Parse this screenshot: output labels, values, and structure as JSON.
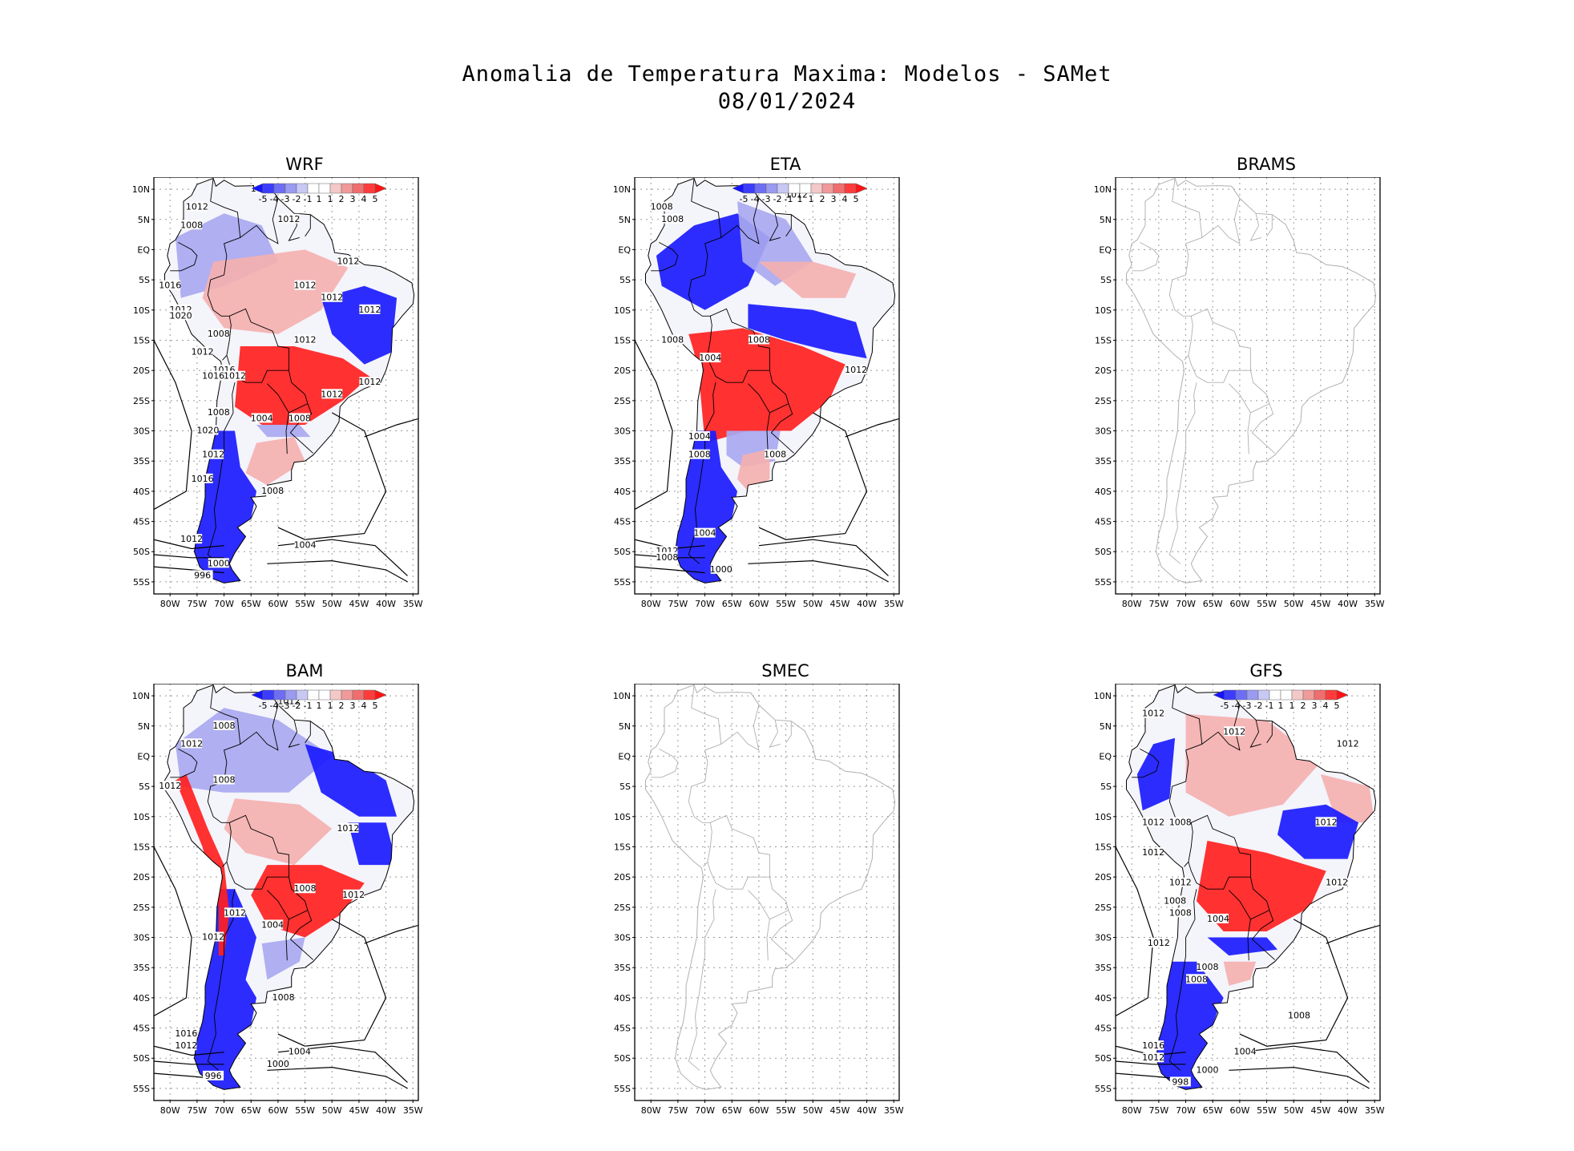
{
  "header": {
    "title_line1": "Anomalia de Temperatura Maxima: Modelos - SAMet",
    "title_line2": "08/01/2024"
  },
  "axes": {
    "lat_labels": [
      "10N",
      "5N",
      "EQ",
      "5S",
      "10S",
      "15S",
      "20S",
      "25S",
      "30S",
      "35S",
      "40S",
      "45S",
      "50S",
      "55S"
    ],
    "lon_labels": [
      "80W",
      "75W",
      "70W",
      "65W",
      "60W",
      "55W",
      "50W",
      "45W",
      "40W",
      "35W"
    ]
  },
  "colorbar": {
    "labels": [
      "-5",
      "-4",
      "-3",
      "-2",
      "-1",
      "1",
      "1",
      "2",
      "3",
      "4",
      "5"
    ],
    "colors": [
      "#1414ff",
      "#3c3cff",
      "#6e6ef5",
      "#9a9af0",
      "#c8c8f5",
      "#ffffff",
      "#ffffff",
      "#f5c8c8",
      "#f09a9a",
      "#f06e6e",
      "#ff3c3c",
      "#ff1414"
    ]
  },
  "colors": {
    "warm": "#ff2020",
    "warm_light": "#f4b0b0",
    "cold": "#1a1aff",
    "cold_light": "#a8a8f0",
    "coast_gray": "#b0b0b0",
    "frame": "#000000"
  },
  "panels": [
    {
      "name": "WRF",
      "has_data": true,
      "contours": [
        {
          "text": "1012",
          "lon": -63,
          "lat": 10
        },
        {
          "text": "1012",
          "lon": -75,
          "lat": 7
        },
        {
          "text": "1008",
          "lon": -76,
          "lat": 4
        },
        {
          "text": "1012",
          "lon": -58,
          "lat": 5
        },
        {
          "text": "1012",
          "lon": -47,
          "lat": -2
        },
        {
          "text": "1016",
          "lon": -80,
          "lat": -6
        },
        {
          "text": "1012",
          "lon": -55,
          "lat": -6
        },
        {
          "text": "1012",
          "lon": -50,
          "lat": -8
        },
        {
          "text": "1012",
          "lon": -43,
          "lat": -10
        },
        {
          "text": "1012",
          "lon": -78,
          "lat": -10
        },
        {
          "text": "1020",
          "lon": -78,
          "lat": -11
        },
        {
          "text": "1008",
          "lon": -71,
          "lat": -14
        },
        {
          "text": "1012",
          "lon": -55,
          "lat": -15
        },
        {
          "text": "1012",
          "lon": -74,
          "lat": -17
        },
        {
          "text": "1016",
          "lon": -70,
          "lat": -20
        },
        {
          "text": "1016",
          "lon": -72,
          "lat": -21
        },
        {
          "text": "1012",
          "lon": -68,
          "lat": -21
        },
        {
          "text": "1012",
          "lon": -43,
          "lat": -22
        },
        {
          "text": "1012",
          "lon": -50,
          "lat": -24
        },
        {
          "text": "1008",
          "lon": -71,
          "lat": -27
        },
        {
          "text": "1004",
          "lon": -63,
          "lat": -28
        },
        {
          "text": "1008",
          "lon": -56,
          "lat": -28
        },
        {
          "text": "1020",
          "lon": -73,
          "lat": -30
        },
        {
          "text": "1012",
          "lon": -72,
          "lat": -34
        },
        {
          "text": "1016",
          "lon": -74,
          "lat": -38
        },
        {
          "text": "1008",
          "lon": -61,
          "lat": -40
        },
        {
          "text": "1012",
          "lon": -76,
          "lat": -48
        },
        {
          "text": "1004",
          "lon": -55,
          "lat": -49
        },
        {
          "text": "1000",
          "lon": -71,
          "lat": -52
        },
        {
          "text": "996",
          "lon": -74,
          "lat": -54
        }
      ]
    },
    {
      "name": "ETA",
      "has_data": true,
      "contours": [
        {
          "text": "1008",
          "lon": -78,
          "lat": 7
        },
        {
          "text": "1008",
          "lon": -76,
          "lat": 5
        },
        {
          "text": "1012",
          "lon": -53,
          "lat": 9
        },
        {
          "text": "1008",
          "lon": -76,
          "lat": -15
        },
        {
          "text": "1008",
          "lon": -60,
          "lat": -15
        },
        {
          "text": "1004",
          "lon": -69,
          "lat": -18
        },
        {
          "text": "1012",
          "lon": -42,
          "lat": -20
        },
        {
          "text": "1004",
          "lon": -71,
          "lat": -31
        },
        {
          "text": "1008",
          "lon": -71,
          "lat": -34
        },
        {
          "text": "1008",
          "lon": -57,
          "lat": -34
        },
        {
          "text": "1004",
          "lon": -70,
          "lat": -47
        },
        {
          "text": "1012",
          "lon": -77,
          "lat": -50
        },
        {
          "text": "1008",
          "lon": -77,
          "lat": -51
        },
        {
          "text": "1000",
          "lon": -67,
          "lat": -53
        }
      ]
    },
    {
      "name": "BRAMS",
      "has_data": false,
      "contours": []
    },
    {
      "name": "BAM",
      "has_data": true,
      "contours": [
        {
          "text": "1012",
          "lon": -58,
          "lat": 9
        },
        {
          "text": "1008",
          "lon": -70,
          "lat": 5
        },
        {
          "text": "1012",
          "lon": -76,
          "lat": 2
        },
        {
          "text": "1008",
          "lon": -70,
          "lat": -4
        },
        {
          "text": "1012",
          "lon": -80,
          "lat": -5
        },
        {
          "text": "1012",
          "lon": -47,
          "lat": -12
        },
        {
          "text": "1008",
          "lon": -55,
          "lat": -22
        },
        {
          "text": "1012",
          "lon": -46,
          "lat": -23
        },
        {
          "text": "1012",
          "lon": -68,
          "lat": -26
        },
        {
          "text": "1004",
          "lon": -61,
          "lat": -28
        },
        {
          "text": "1012",
          "lon": -72,
          "lat": -30
        },
        {
          "text": "1008",
          "lon": -59,
          "lat": -40
        },
        {
          "text": "1016",
          "lon": -77,
          "lat": -46
        },
        {
          "text": "1012",
          "lon": -77,
          "lat": -48
        },
        {
          "text": "1004",
          "lon": -56,
          "lat": -49
        },
        {
          "text": "1000",
          "lon": -60,
          "lat": -51
        },
        {
          "text": "996",
          "lon": -72,
          "lat": -53
        }
      ]
    },
    {
      "name": "SMEC",
      "has_data": false,
      "contours": []
    },
    {
      "name": "GFS",
      "has_data": true,
      "contours": [
        {
          "text": "1012",
          "lon": -76,
          "lat": 7
        },
        {
          "text": "1012",
          "lon": -61,
          "lat": 4
        },
        {
          "text": "1012",
          "lon": -40,
          "lat": 2
        },
        {
          "text": "1012",
          "lon": -76,
          "lat": -11
        },
        {
          "text": "1008",
          "lon": -71,
          "lat": -11
        },
        {
          "text": "1012",
          "lon": -44,
          "lat": -11
        },
        {
          "text": "1012",
          "lon": -76,
          "lat": -16
        },
        {
          "text": "1012",
          "lon": -71,
          "lat": -21
        },
        {
          "text": "1012",
          "lon": -42,
          "lat": -21
        },
        {
          "text": "1008",
          "lon": -72,
          "lat": -24
        },
        {
          "text": "1008",
          "lon": -71,
          "lat": -26
        },
        {
          "text": "1004",
          "lon": -64,
          "lat": -27
        },
        {
          "text": "1012",
          "lon": -75,
          "lat": -31
        },
        {
          "text": "1008",
          "lon": -66,
          "lat": -35
        },
        {
          "text": "1008",
          "lon": -68,
          "lat": -37
        },
        {
          "text": "1008",
          "lon": -49,
          "lat": -43
        },
        {
          "text": "1016",
          "lon": -76,
          "lat": -48
        },
        {
          "text": "1012",
          "lon": -76,
          "lat": -50
        },
        {
          "text": "1004",
          "lon": -59,
          "lat": -49
        },
        {
          "text": "1000",
          "lon": -66,
          "lat": -52
        },
        {
          "text": "998",
          "lon": -71,
          "lat": -54
        }
      ]
    }
  ]
}
